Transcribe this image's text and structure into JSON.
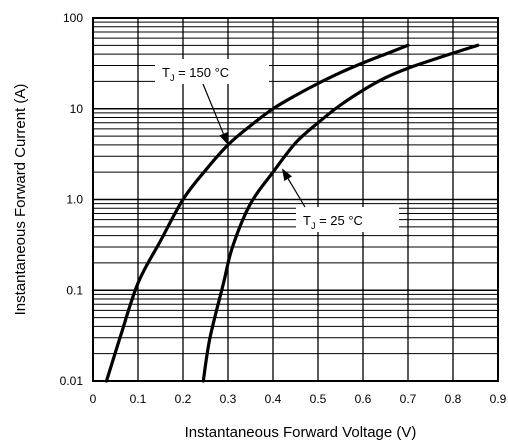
{
  "chart_data": {
    "type": "line",
    "xlabel": "Instantaneous Forward Voltage (V)",
    "ylabel": "Instantaneous Forward Current (A)",
    "xlim": [
      0,
      0.9
    ],
    "ylim": [
      0.01,
      100
    ],
    "yscale": "log",
    "grid": true,
    "x_tick_labels": [
      "0",
      "0.1",
      "0.2",
      "0.3",
      "0.4",
      "0.5",
      "0.6",
      "0.7",
      "0.8",
      "0.9"
    ],
    "y_tick_labels": [
      "0.01",
      "0.1",
      "1.0",
      "10",
      "100"
    ],
    "series": [
      {
        "name": "TJ = 150 °C",
        "points": [
          {
            "x": 0.03,
            "y": 0.01
          },
          {
            "x": 0.06,
            "y": 0.03
          },
          {
            "x": 0.1,
            "y": 0.12
          },
          {
            "x": 0.15,
            "y": 0.35
          },
          {
            "x": 0.2,
            "y": 1.0
          },
          {
            "x": 0.25,
            "y": 2.1
          },
          {
            "x": 0.3,
            "y": 4.0
          },
          {
            "x": 0.35,
            "y": 6.5
          },
          {
            "x": 0.4,
            "y": 10
          },
          {
            "x": 0.45,
            "y": 14
          },
          {
            "x": 0.5,
            "y": 19
          },
          {
            "x": 0.55,
            "y": 25
          },
          {
            "x": 0.6,
            "y": 32
          },
          {
            "x": 0.65,
            "y": 40
          },
          {
            "x": 0.7,
            "y": 50
          }
        ]
      },
      {
        "name": "TJ = 25 °C",
        "points": [
          {
            "x": 0.245,
            "y": 0.01
          },
          {
            "x": 0.26,
            "y": 0.03
          },
          {
            "x": 0.29,
            "y": 0.12
          },
          {
            "x": 0.31,
            "y": 0.3
          },
          {
            "x": 0.35,
            "y": 0.9
          },
          {
            "x": 0.4,
            "y": 2.0
          },
          {
            "x": 0.45,
            "y": 4.2
          },
          {
            "x": 0.5,
            "y": 7.0
          },
          {
            "x": 0.55,
            "y": 11
          },
          {
            "x": 0.6,
            "y": 16
          },
          {
            "x": 0.65,
            "y": 22
          },
          {
            "x": 0.7,
            "y": 28
          },
          {
            "x": 0.75,
            "y": 34
          },
          {
            "x": 0.8,
            "y": 41
          },
          {
            "x": 0.855,
            "y": 50
          }
        ]
      }
    ],
    "annotations": [
      {
        "main": "T",
        "sub": "J",
        "rest": " = 150 °C",
        "series": 0,
        "target": {
          "x": 0.3,
          "y": 4.0
        }
      },
      {
        "main": "T",
        "sub": "J",
        "rest": " = 25 °C",
        "series": 1,
        "target": {
          "x": 0.42,
          "y": 2.2
        }
      }
    ]
  }
}
